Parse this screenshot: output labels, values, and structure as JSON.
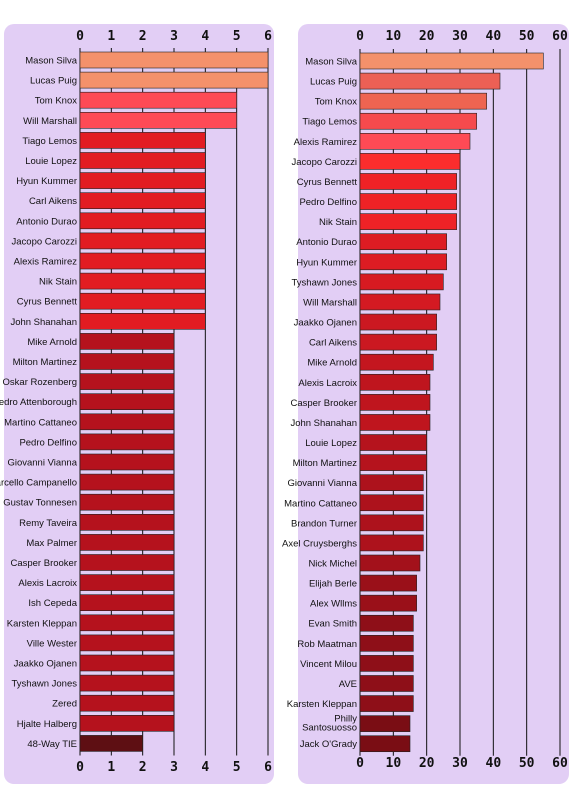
{
  "chart_data": [
    {
      "type": "bar",
      "orientation": "horizontal",
      "categories": [
        "Mason Silva",
        "Lucas Puig",
        "Tom Knox",
        "Will Marshall",
        "Tiago Lemos",
        "Louie Lopez",
        "Hyun Kummer",
        "Carl Aikens",
        "Antonio Durao",
        "Jacopo Carozzi",
        "Alexis Ramirez",
        "Nik Stain",
        "Cyrus Bennett",
        "John Shanahan",
        "Mike Arnold",
        "Milton Martinez",
        "Oskar Rozenberg",
        "Pedro Attenborough",
        "Martino Cattaneo",
        "Pedro Delfino",
        "Giovanni Vianna",
        "Marcello Campanello",
        "Gustav Tonnesen",
        "Remy Taveira",
        "Max Palmer",
        "Casper Brooker",
        "Alexis Lacroix",
        "Ish Cepeda",
        "Karsten Kleppan",
        "Ville Wester",
        "Jaakko Ojanen",
        "Tyshawn Jones",
        "Zered",
        "Hjalte Halberg",
        "48-Way TIE"
      ],
      "values": [
        6,
        6,
        5,
        5,
        4,
        4,
        4,
        4,
        4,
        4,
        4,
        4,
        4,
        4,
        3,
        3,
        3,
        3,
        3,
        3,
        3,
        3,
        3,
        3,
        3,
        3,
        3,
        3,
        3,
        3,
        3,
        3,
        3,
        3,
        2
      ],
      "colors": [
        "#f4916b",
        "#f4916b",
        "#fe4a55",
        "#fe4a55",
        "#e21c22",
        "#e21c22",
        "#e21c22",
        "#e21c22",
        "#e21c22",
        "#e21c22",
        "#e21c22",
        "#e21c22",
        "#e21c22",
        "#e21c22",
        "#b5121d",
        "#b5121d",
        "#b5121d",
        "#b5121d",
        "#b5121d",
        "#b5121d",
        "#b5121d",
        "#b5121d",
        "#b5121d",
        "#b5121d",
        "#b5121d",
        "#b5121d",
        "#b5121d",
        "#b5121d",
        "#b5121d",
        "#b5121d",
        "#b5121d",
        "#b5121d",
        "#b5121d",
        "#b5121d",
        "#5e0f13"
      ],
      "xlim": [
        0,
        6
      ],
      "ticks": [
        "0",
        "1",
        "2",
        "3",
        "4",
        "5",
        "6"
      ],
      "grid": true
    },
    {
      "type": "bar",
      "orientation": "horizontal",
      "categories": [
        "Mason Silva",
        "Lucas Puig",
        "Tom Knox",
        "Tiago Lemos",
        "Alexis Ramirez",
        "Jacopo Carozzi",
        "Cyrus Bennett",
        "Pedro Delfino",
        "Nik Stain",
        "Antonio Durao",
        "Hyun Kummer",
        "Tyshawn Jones",
        "Will Marshall",
        "Jaakko Ojanen",
        "Carl Aikens",
        "Mike Arnold",
        "Alexis Lacroix",
        "Casper Brooker",
        "John Shanahan",
        "Louie Lopez",
        "Milton Martinez",
        "Giovanni Vianna",
        "Martino Cattaneo",
        "Brandon Turner",
        "Axel Cruysberghs",
        "Nick Michel",
        "Elijah Berle",
        "Alex Wllms",
        "Evan Smith",
        "Rob Maatman",
        "Vincent Milou",
        "AVE",
        "Karsten Kleppan",
        "Philly Santosuosso",
        "Jack O'Grady"
      ],
      "values": [
        55,
        42,
        38,
        35,
        33,
        30,
        29,
        29,
        29,
        26,
        26,
        25,
        24,
        23,
        23,
        22,
        21,
        21,
        21,
        20,
        20,
        19,
        19,
        19,
        19,
        18,
        17,
        17,
        16,
        16,
        16,
        16,
        16,
        15,
        15
      ],
      "colors": [
        "#f4916b",
        "#ec6055",
        "#ee6451",
        "#f64a4d",
        "#fe4a55",
        "#fb2d2d",
        "#ef2226",
        "#ef2226",
        "#ef2226",
        "#dd1c23",
        "#dd1c23",
        "#d71a21",
        "#d41a22",
        "#cb1821",
        "#cb1821",
        "#c4161f",
        "#bf151e",
        "#bf151e",
        "#bf151e",
        "#b5131d",
        "#b5131d",
        "#ad121c",
        "#ad121c",
        "#ad121c",
        "#ad121c",
        "#a3111b",
        "#9a1019",
        "#9a1019",
        "#8e0f18",
        "#8e0f18",
        "#8e0f18",
        "#8e0f18",
        "#8e0f18",
        "#7a0d14",
        "#7a0d14"
      ],
      "xlim": [
        0,
        60
      ],
      "ticks": [
        "0",
        "10",
        "20",
        "30",
        "40",
        "50",
        "60"
      ],
      "grid": true
    }
  ]
}
